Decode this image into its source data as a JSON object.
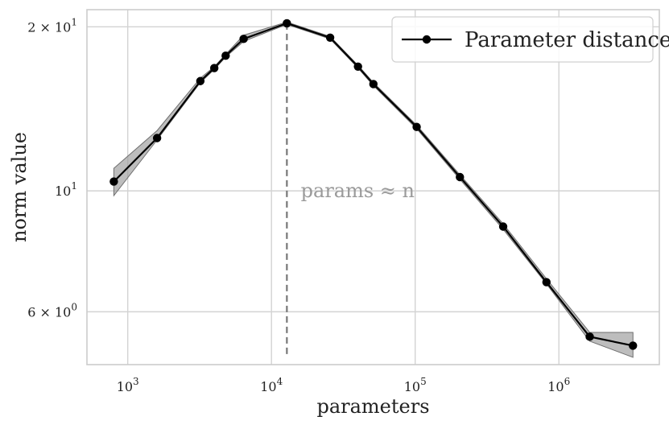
{
  "chart_data": {
    "type": "line",
    "xlabel": "parameters",
    "ylabel": "norm value",
    "xscale": "log",
    "yscale": "log",
    "xlim": [
      520,
      5000000
    ],
    "ylim": [
      4.8,
      21.5
    ],
    "xticks": [
      {
        "value": 1000,
        "label_base": "10",
        "label_exp": "3"
      },
      {
        "value": 10000,
        "label_base": "10",
        "label_exp": "4"
      },
      {
        "value": 100000,
        "label_base": "10",
        "label_exp": "5"
      },
      {
        "value": 1000000,
        "label_base": "10",
        "label_exp": "6"
      }
    ],
    "yticks": [
      {
        "value": 20,
        "label_base": "2 × 10",
        "label_exp": "1"
      },
      {
        "value": 10,
        "label_base": "10",
        "label_exp": "1"
      },
      {
        "value": 6,
        "label_base": "6 × 10",
        "label_exp": "0"
      }
    ],
    "grid": true,
    "legend_position": "upper right",
    "series": [
      {
        "name": "Parameter distance",
        "color": "#000000",
        "band_color": "#999999",
        "marker": "circle",
        "x": [
          800,
          1600,
          3200,
          4000,
          4800,
          6400,
          12800,
          25600,
          40000,
          51200,
          102400,
          204800,
          409600,
          819200,
          1638400,
          3276800
        ],
        "y": [
          10.4,
          12.5,
          15.9,
          16.8,
          17.7,
          19.0,
          20.3,
          19.1,
          16.9,
          15.7,
          13.1,
          10.6,
          8.6,
          6.8,
          5.4,
          5.2
        ],
        "y_lower": [
          9.8,
          12.4,
          15.8,
          16.7,
          17.6,
          18.8,
          20.2,
          19.0,
          16.8,
          15.6,
          13.0,
          10.5,
          8.5,
          6.75,
          5.3,
          4.95
        ],
        "y_upper": [
          11.0,
          12.9,
          16.1,
          16.9,
          17.8,
          19.3,
          20.4,
          19.2,
          17.0,
          15.8,
          13.2,
          10.7,
          8.7,
          6.9,
          5.5,
          5.5
        ]
      }
    ],
    "annotations": [
      {
        "type": "vline",
        "x": 12800,
        "y_from": 5.0,
        "y_to": 20.3,
        "color": "#777777",
        "style": "dashed",
        "text": "params ≈ n",
        "text_x": 16000,
        "text_y": 10
      }
    ]
  }
}
